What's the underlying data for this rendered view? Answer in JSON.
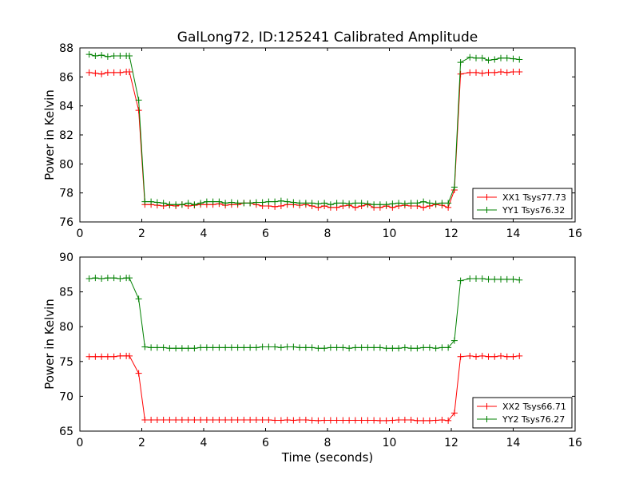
{
  "figure": {
    "title": "GalLong72, ID:125241 Calibrated Amplitude"
  },
  "chart_data": [
    {
      "type": "line",
      "xlabel": "",
      "ylabel": "Power in Kelvin",
      "xlim": [
        0,
        16
      ],
      "ylim": [
        76,
        88
      ],
      "xticks": [
        0,
        2,
        4,
        6,
        8,
        10,
        12,
        14,
        16
      ],
      "yticks": [
        76,
        78,
        80,
        82,
        84,
        86,
        88
      ],
      "grid": false,
      "legend_position": "lower-right",
      "series": [
        {
          "name": "XX1 Tsys77.73",
          "color": "#ff0000",
          "marker": "plus",
          "x": [
            0.3,
            0.5,
            0.7,
            0.9,
            1.1,
            1.3,
            1.5,
            1.6,
            1.9,
            2.1,
            2.3,
            2.5,
            2.7,
            2.9,
            3.1,
            3.3,
            3.5,
            3.7,
            3.9,
            4.1,
            4.3,
            4.5,
            4.7,
            4.9,
            5.1,
            5.3,
            5.5,
            5.7,
            5.9,
            6.1,
            6.3,
            6.5,
            6.7,
            6.9,
            7.1,
            7.3,
            7.5,
            7.7,
            7.9,
            8.1,
            8.3,
            8.5,
            8.7,
            8.9,
            9.1,
            9.3,
            9.5,
            9.7,
            9.9,
            10.1,
            10.3,
            10.5,
            10.7,
            10.9,
            11.1,
            11.3,
            11.5,
            11.7,
            11.9,
            12.1,
            12.3,
            12.6,
            12.8,
            13.0,
            13.2,
            13.4,
            13.6,
            13.8,
            14.0,
            14.2
          ],
          "y": [
            86.3,
            86.25,
            86.2,
            86.3,
            86.3,
            86.3,
            86.35,
            86.35,
            83.7,
            77.2,
            77.2,
            77.15,
            77.1,
            77.15,
            77.1,
            77.2,
            77.1,
            77.15,
            77.2,
            77.2,
            77.2,
            77.25,
            77.15,
            77.2,
            77.2,
            77.3,
            77.3,
            77.2,
            77.1,
            77.1,
            77.05,
            77.1,
            77.2,
            77.2,
            77.15,
            77.2,
            77.1,
            77.0,
            77.1,
            77.0,
            77.0,
            77.1,
            77.15,
            77.0,
            77.1,
            77.2,
            77.0,
            77.0,
            77.1,
            77.0,
            77.1,
            77.15,
            77.1,
            77.1,
            77.0,
            77.1,
            77.2,
            77.15,
            77.0,
            78.2,
            86.2,
            86.3,
            86.3,
            86.25,
            86.3,
            86.3,
            86.35,
            86.3,
            86.35,
            86.35
          ]
        },
        {
          "name": "YY1 Tsys76.32",
          "color": "#008000",
          "marker": "plus",
          "x": [
            0.3,
            0.5,
            0.7,
            0.9,
            1.1,
            1.3,
            1.5,
            1.6,
            1.9,
            2.1,
            2.3,
            2.5,
            2.7,
            2.9,
            3.1,
            3.3,
            3.5,
            3.7,
            3.9,
            4.1,
            4.3,
            4.5,
            4.7,
            4.9,
            5.1,
            5.3,
            5.5,
            5.7,
            5.9,
            6.1,
            6.3,
            6.5,
            6.7,
            6.9,
            7.1,
            7.3,
            7.5,
            7.7,
            7.9,
            8.1,
            8.3,
            8.5,
            8.7,
            8.9,
            9.1,
            9.3,
            9.5,
            9.7,
            9.9,
            10.1,
            10.3,
            10.5,
            10.7,
            10.9,
            11.1,
            11.3,
            11.5,
            11.7,
            11.9,
            12.1,
            12.3,
            12.6,
            12.8,
            13.0,
            13.2,
            13.4,
            13.6,
            13.8,
            14.0,
            14.2
          ],
          "y": [
            87.55,
            87.45,
            87.5,
            87.4,
            87.45,
            87.45,
            87.45,
            87.45,
            84.4,
            77.4,
            77.4,
            77.35,
            77.3,
            77.2,
            77.2,
            77.2,
            77.3,
            77.2,
            77.3,
            77.4,
            77.4,
            77.4,
            77.3,
            77.35,
            77.3,
            77.3,
            77.3,
            77.35,
            77.35,
            77.4,
            77.4,
            77.45,
            77.4,
            77.35,
            77.3,
            77.3,
            77.3,
            77.25,
            77.3,
            77.2,
            77.3,
            77.3,
            77.25,
            77.3,
            77.3,
            77.25,
            77.2,
            77.2,
            77.2,
            77.25,
            77.3,
            77.25,
            77.3,
            77.3,
            77.4,
            77.3,
            77.25,
            77.3,
            77.3,
            78.4,
            87.0,
            87.35,
            87.3,
            87.3,
            87.15,
            87.2,
            87.3,
            87.3,
            87.25,
            87.2
          ]
        }
      ]
    },
    {
      "type": "line",
      "xlabel": "Time (seconds)",
      "ylabel": "Power in Kelvin",
      "xlim": [
        0,
        16
      ],
      "ylim": [
        65,
        90
      ],
      "xticks": [
        0,
        2,
        4,
        6,
        8,
        10,
        12,
        14,
        16
      ],
      "yticks": [
        65,
        70,
        75,
        80,
        85,
        90
      ],
      "grid": false,
      "legend_position": "lower-right",
      "series": [
        {
          "name": "XX2 Tsys66.71",
          "color": "#ff0000",
          "marker": "plus",
          "x": [
            0.3,
            0.5,
            0.7,
            0.9,
            1.1,
            1.3,
            1.5,
            1.6,
            1.9,
            2.1,
            2.3,
            2.5,
            2.7,
            2.9,
            3.1,
            3.3,
            3.5,
            3.7,
            3.9,
            4.1,
            4.3,
            4.5,
            4.7,
            4.9,
            5.1,
            5.3,
            5.5,
            5.7,
            5.9,
            6.1,
            6.3,
            6.5,
            6.7,
            6.9,
            7.1,
            7.3,
            7.5,
            7.7,
            7.9,
            8.1,
            8.3,
            8.5,
            8.7,
            8.9,
            9.1,
            9.3,
            9.5,
            9.7,
            9.9,
            10.1,
            10.3,
            10.5,
            10.7,
            10.9,
            11.1,
            11.3,
            11.5,
            11.7,
            11.9,
            12.1,
            12.3,
            12.6,
            12.8,
            13.0,
            13.2,
            13.4,
            13.6,
            13.8,
            14.0,
            14.2
          ],
          "y": [
            75.7,
            75.7,
            75.7,
            75.7,
            75.7,
            75.8,
            75.8,
            75.8,
            73.3,
            66.6,
            66.6,
            66.6,
            66.6,
            66.6,
            66.6,
            66.6,
            66.6,
            66.6,
            66.6,
            66.6,
            66.6,
            66.6,
            66.6,
            66.6,
            66.6,
            66.6,
            66.6,
            66.6,
            66.6,
            66.6,
            66.55,
            66.55,
            66.6,
            66.55,
            66.6,
            66.6,
            66.55,
            66.5,
            66.55,
            66.55,
            66.55,
            66.55,
            66.55,
            66.55,
            66.55,
            66.55,
            66.55,
            66.5,
            66.5,
            66.55,
            66.6,
            66.6,
            66.6,
            66.5,
            66.5,
            66.5,
            66.55,
            66.6,
            66.5,
            67.6,
            75.7,
            75.8,
            75.7,
            75.8,
            75.7,
            75.7,
            75.8,
            75.7,
            75.7,
            75.8
          ]
        },
        {
          "name": "YY2 Tsys76.27",
          "color": "#008000",
          "marker": "plus",
          "x": [
            0.3,
            0.5,
            0.7,
            0.9,
            1.1,
            1.3,
            1.5,
            1.6,
            1.9,
            2.1,
            2.3,
            2.5,
            2.7,
            2.9,
            3.1,
            3.3,
            3.5,
            3.7,
            3.9,
            4.1,
            4.3,
            4.5,
            4.7,
            4.9,
            5.1,
            5.3,
            5.5,
            5.7,
            5.9,
            6.1,
            6.3,
            6.5,
            6.7,
            6.9,
            7.1,
            7.3,
            7.5,
            7.7,
            7.9,
            8.1,
            8.3,
            8.5,
            8.7,
            8.9,
            9.1,
            9.3,
            9.5,
            9.7,
            9.9,
            10.1,
            10.3,
            10.5,
            10.7,
            10.9,
            11.1,
            11.3,
            11.5,
            11.7,
            11.9,
            12.1,
            12.3,
            12.6,
            12.8,
            13.0,
            13.2,
            13.4,
            13.6,
            13.8,
            14.0,
            14.2
          ],
          "y": [
            86.9,
            87.0,
            86.9,
            87.0,
            87.0,
            86.9,
            87.0,
            87.0,
            84.0,
            77.1,
            77.0,
            77.0,
            77.0,
            76.9,
            76.9,
            76.9,
            76.9,
            76.9,
            77.0,
            77.0,
            77.0,
            77.0,
            77.0,
            77.0,
            77.0,
            77.0,
            77.0,
            77.0,
            77.1,
            77.1,
            77.1,
            77.0,
            77.1,
            77.1,
            77.0,
            77.0,
            77.0,
            76.9,
            76.9,
            77.0,
            77.0,
            77.0,
            76.9,
            77.0,
            77.0,
            77.0,
            77.0,
            77.0,
            76.9,
            76.9,
            76.9,
            77.0,
            76.9,
            76.9,
            77.0,
            77.0,
            76.9,
            77.0,
            77.0,
            78.0,
            86.6,
            86.9,
            86.9,
            86.9,
            86.8,
            86.8,
            86.8,
            86.8,
            86.8,
            86.7
          ]
        }
      ]
    }
  ]
}
